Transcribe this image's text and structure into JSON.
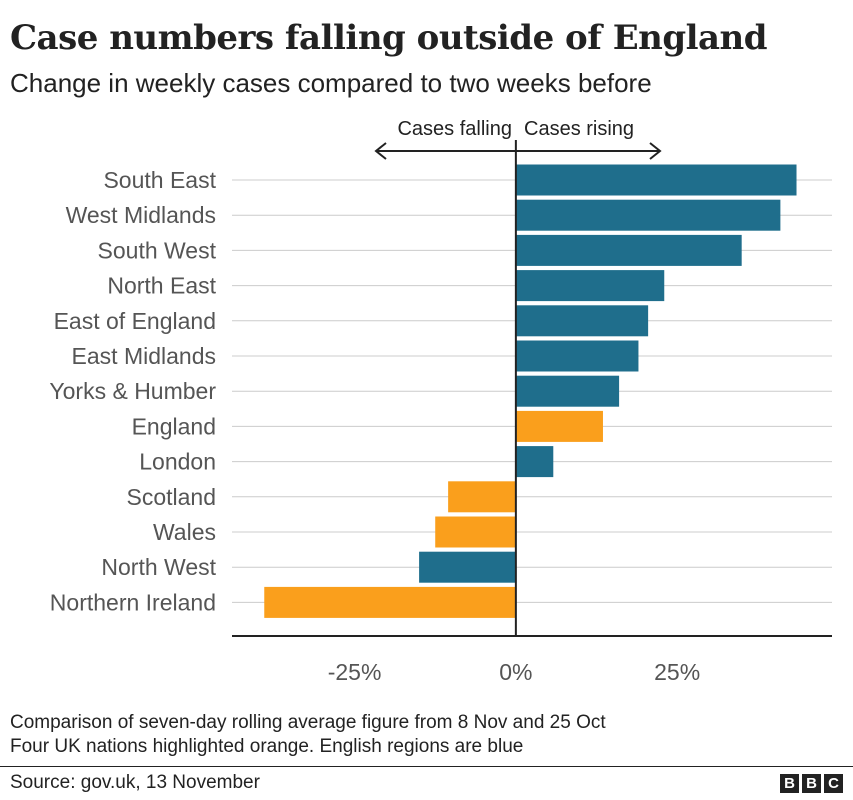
{
  "chart_data": {
    "type": "bar",
    "orientation": "horizontal",
    "title": "Case numbers falling outside of England",
    "subtitle": "Change in weekly cases compared to two weeks before",
    "categories": [
      "South East",
      "West Midlands",
      "South West",
      "North East",
      "East of England",
      "East Midlands",
      "Yorks & Humber",
      "England",
      "London",
      "Scotland",
      "Wales",
      "North West",
      "Northern Ireland"
    ],
    "values": [
      43.5,
      41,
      35,
      23,
      20.5,
      19,
      16,
      13.5,
      5.8,
      -10.5,
      -12.5,
      -15,
      -39
    ],
    "groups": [
      "region",
      "region",
      "region",
      "region",
      "region",
      "region",
      "region",
      "nation",
      "region",
      "nation",
      "nation",
      "region",
      "nation"
    ],
    "colors": {
      "region": "#1f6e8c",
      "nation": "#fa9f1c"
    },
    "xlim": [
      -44,
      49
    ],
    "xticks": [
      -25,
      0,
      25
    ],
    "xtick_labels": [
      "-25%",
      "0%",
      "25%"
    ],
    "direction_labels": {
      "left": "Cases falling",
      "right": "Cases rising"
    },
    "grid": true
  },
  "footnote_1": "Comparison of seven-day rolling average figure from 8 Nov and 25 Oct",
  "footnote_2": "Four UK nations highlighted orange. English regions are blue",
  "source": "Source: gov.uk, 13 November",
  "logo": [
    "B",
    "B",
    "C"
  ]
}
